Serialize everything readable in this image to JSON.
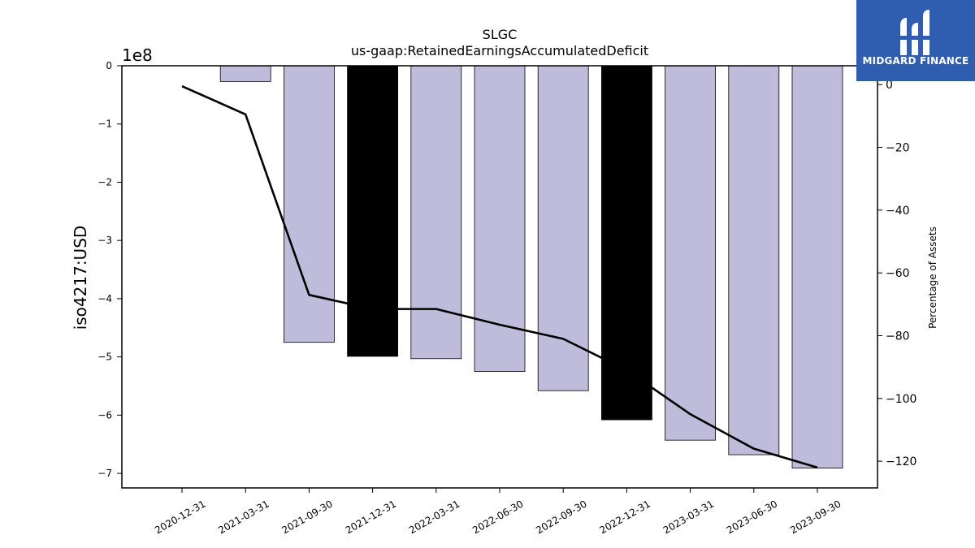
{
  "chart_data": {
    "type": "bar",
    "title": "SLGC",
    "subtitle": "us-gaap:RetainedEarningsAccumulatedDeficit",
    "ylabel": "iso4217:USD",
    "y_exponent_label": "1e8",
    "y2label": "Percentage of Assets",
    "ylim": [
      -7.25,
      0
    ],
    "y2lim": [
      -128.5,
      6
    ],
    "yticks": [
      0,
      -1,
      -2,
      -3,
      -4,
      -5,
      -6,
      -7
    ],
    "yticklabels": [
      "0",
      "−1",
      "−2",
      "−3",
      "−4",
      "−5",
      "−6",
      "−7"
    ],
    "y2ticks": [
      0,
      -20,
      -40,
      -60,
      -80,
      -100,
      -120
    ],
    "y2ticklabels": [
      "0",
      "−20",
      "−40",
      "−60",
      "−80",
      "−100",
      "−120"
    ],
    "categories": [
      "2020-12-31",
      "2021-03-31",
      "2021-09-30",
      "2021-12-31",
      "2022-03-31",
      "2022-06-30",
      "2022-09-30",
      "2022-12-31",
      "2023-03-31",
      "2023-06-30",
      "2023-09-30"
    ],
    "series": [
      {
        "type": "bar",
        "axis": "left",
        "values": [
          0,
          -0.27,
          -4.75,
          -4.99,
          -5.03,
          -5.25,
          -5.58,
          -6.08,
          -6.43,
          -6.68,
          -6.91
        ],
        "colors": [
          "#bfbcdb",
          "#bfbcdb",
          "#bfbcdb",
          "#000000",
          "#bfbcdb",
          "#bfbcdb",
          "#bfbcdb",
          "#000000",
          "#bfbcdb",
          "#bfbcdb",
          "#bfbcdb"
        ]
      },
      {
        "type": "line",
        "axis": "right",
        "color": "#000000",
        "values": [
          -0.5,
          -9.5,
          -67,
          -71.5,
          -71.5,
          -76.5,
          -81,
          -91,
          -105,
          -116,
          -122
        ]
      }
    ],
    "grid": false
  },
  "logo": {
    "text": "MIDGARD FINANCE",
    "background": "#2f5db0"
  }
}
